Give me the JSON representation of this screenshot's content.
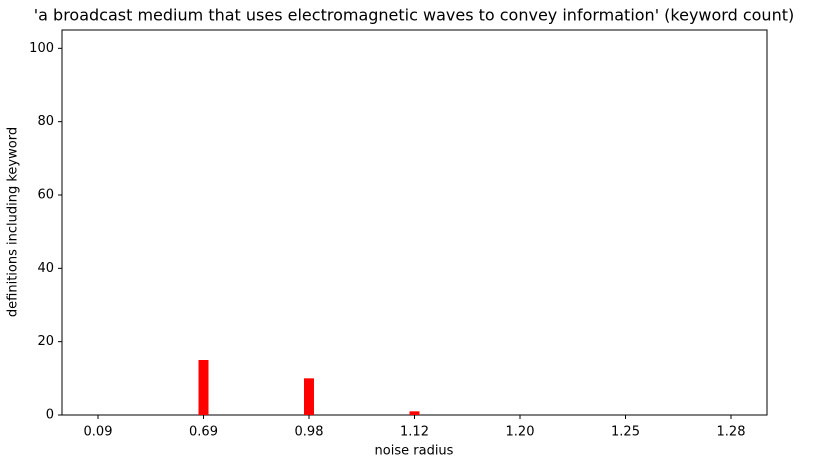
{
  "chart_data": {
    "type": "bar",
    "title": "'a broadcast medium that uses electromagnetic waves to convey information' (keyword count)",
    "x_label": "noise radius",
    "y_label": "definitions including keyword",
    "categories": [
      "0.09",
      "0.69",
      "0.98",
      "1.12",
      "1.20",
      "1.25",
      "1.28"
    ],
    "values": [
      0,
      15,
      10,
      1,
      0,
      0,
      0
    ],
    "color": "#ff0000",
    "ylim": [
      0,
      105
    ],
    "yticks": [
      0,
      20,
      40,
      60,
      80,
      100
    ],
    "grid": false
  }
}
